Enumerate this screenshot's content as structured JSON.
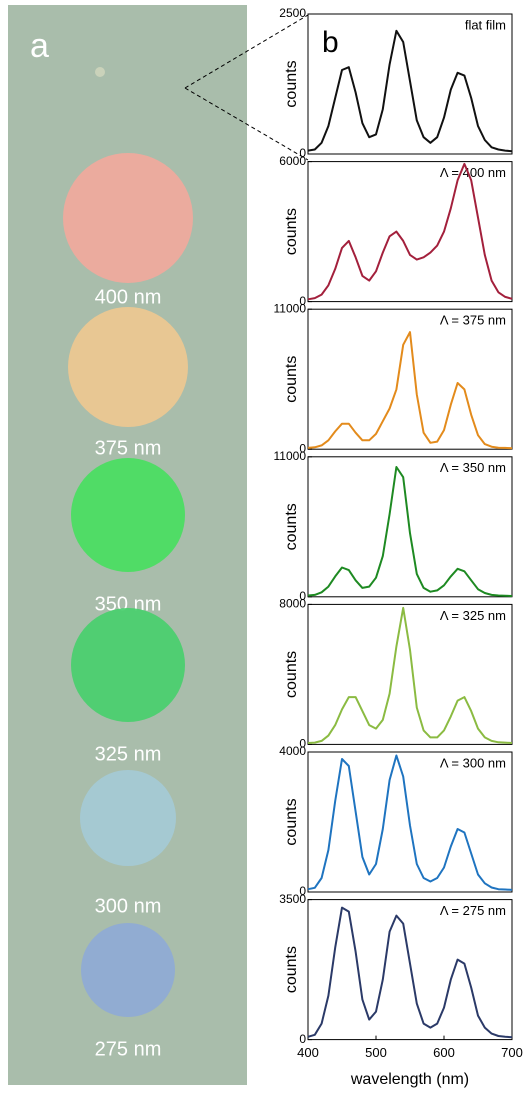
{
  "panel_a": {
    "label": "a",
    "background": "#a9bdab",
    "samples": [
      {
        "label": "400 nm",
        "color": "#f2a89c"
      },
      {
        "label": "375 nm",
        "color": "#eec890"
      },
      {
        "label": "350 nm",
        "color": "#46df5e"
      },
      {
        "label": "325 nm",
        "color": "#46cf6c"
      },
      {
        "label": "300 nm",
        "color": "#a4cad6"
      },
      {
        "label": "275 nm",
        "color": "#8eaad6"
      }
    ]
  },
  "panel_b": {
    "label": "b"
  },
  "chart_data": [
    {
      "type": "line",
      "annotation": "flat film",
      "ylabel": "counts",
      "color": "#111111",
      "xlim": [
        400,
        700
      ],
      "ylim": [
        0,
        2500
      ],
      "yticks": [
        0,
        2500
      ],
      "x": [
        400,
        410,
        420,
        430,
        440,
        450,
        460,
        470,
        480,
        490,
        500,
        510,
        520,
        530,
        540,
        550,
        560,
        570,
        580,
        590,
        600,
        610,
        620,
        630,
        640,
        650,
        660,
        670,
        680,
        690,
        700
      ],
      "values": [
        60,
        80,
        200,
        500,
        1000,
        1500,
        1550,
        1100,
        550,
        300,
        350,
        800,
        1600,
        2200,
        2000,
        1300,
        600,
        300,
        200,
        300,
        650,
        1150,
        1450,
        1400,
        1000,
        500,
        250,
        120,
        80,
        60,
        50
      ]
    },
    {
      "type": "line",
      "annotation": "Λ = 400 nm",
      "ylabel": "counts",
      "color": "#a3203c",
      "xlim": [
        400,
        700
      ],
      "ylim": [
        0,
        6000
      ],
      "yticks": [
        0,
        6000
      ],
      "x": [
        400,
        410,
        420,
        430,
        440,
        450,
        460,
        470,
        480,
        490,
        500,
        510,
        520,
        530,
        540,
        550,
        560,
        570,
        580,
        590,
        600,
        610,
        620,
        630,
        640,
        650,
        660,
        670,
        680,
        690,
        700
      ],
      "values": [
        100,
        150,
        300,
        700,
        1400,
        2300,
        2600,
        1900,
        1100,
        900,
        1300,
        2100,
        2800,
        3000,
        2600,
        2000,
        1800,
        1900,
        2100,
        2400,
        3000,
        4000,
        5200,
        5900,
        5200,
        3600,
        2000,
        900,
        400,
        200,
        120
      ]
    },
    {
      "type": "line",
      "annotation": "Λ = 375 nm",
      "ylabel": "counts",
      "color": "#e38b1c",
      "xlim": [
        400,
        700
      ],
      "ylim": [
        0,
        11000
      ],
      "yticks": [
        0,
        11000
      ],
      "x": [
        400,
        410,
        420,
        430,
        440,
        450,
        460,
        470,
        480,
        490,
        500,
        510,
        520,
        530,
        540,
        550,
        560,
        570,
        580,
        590,
        600,
        610,
        620,
        630,
        640,
        650,
        660,
        670,
        680,
        690,
        700
      ],
      "values": [
        100,
        150,
        300,
        700,
        1400,
        2000,
        2000,
        1300,
        700,
        700,
        1200,
        2200,
        3200,
        4700,
        8200,
        9200,
        4300,
        1300,
        500,
        600,
        1500,
        3500,
        5200,
        4700,
        2700,
        1100,
        400,
        200,
        120,
        100,
        80
      ]
    },
    {
      "type": "line",
      "annotation": "Λ = 350 nm",
      "ylabel": "counts",
      "color": "#1e8a22",
      "xlim": [
        400,
        700
      ],
      "ylim": [
        0,
        11000
      ],
      "yticks": [
        0,
        11000
      ],
      "x": [
        400,
        410,
        420,
        430,
        440,
        450,
        460,
        470,
        480,
        490,
        500,
        510,
        520,
        530,
        540,
        550,
        560,
        570,
        580,
        590,
        600,
        610,
        620,
        630,
        640,
        650,
        660,
        670,
        680,
        690,
        700
      ],
      "values": [
        100,
        150,
        350,
        800,
        1600,
        2300,
        2100,
        1300,
        700,
        800,
        1500,
        3200,
        6500,
        10200,
        9400,
        5000,
        1800,
        700,
        400,
        500,
        900,
        1600,
        2200,
        2000,
        1300,
        600,
        300,
        150,
        100,
        80,
        60
      ]
    },
    {
      "type": "line",
      "annotation": "Λ = 325 nm",
      "ylabel": "counts",
      "color": "#8bbb42",
      "xlim": [
        400,
        700
      ],
      "ylim": [
        0,
        8000
      ],
      "yticks": [
        0,
        8000
      ],
      "x": [
        400,
        410,
        420,
        430,
        440,
        450,
        460,
        470,
        480,
        490,
        500,
        510,
        520,
        530,
        540,
        550,
        560,
        570,
        580,
        590,
        600,
        610,
        620,
        630,
        640,
        650,
        660,
        670,
        680,
        690,
        700
      ],
      "values": [
        80,
        100,
        200,
        500,
        1100,
        2000,
        2700,
        2700,
        1900,
        1100,
        900,
        1400,
        2900,
        5600,
        7800,
        5400,
        2100,
        800,
        400,
        400,
        800,
        1600,
        2500,
        2700,
        1900,
        900,
        400,
        200,
        120,
        100,
        80
      ]
    },
    {
      "type": "line",
      "annotation": "Λ = 300 nm",
      "ylabel": "counts",
      "color": "#1f74c0",
      "xlim": [
        400,
        700
      ],
      "ylim": [
        0,
        4000
      ],
      "yticks": [
        0,
        4000
      ],
      "x": [
        400,
        410,
        420,
        430,
        440,
        450,
        460,
        470,
        480,
        490,
        500,
        510,
        520,
        530,
        540,
        550,
        560,
        570,
        580,
        590,
        600,
        610,
        620,
        630,
        640,
        650,
        660,
        670,
        680,
        690,
        700
      ],
      "values": [
        80,
        120,
        400,
        1200,
        2600,
        3800,
        3600,
        2300,
        1000,
        500,
        800,
        1800,
        3200,
        3900,
        3300,
        1900,
        800,
        400,
        300,
        400,
        700,
        1300,
        1800,
        1700,
        1100,
        500,
        250,
        130,
        80,
        70,
        60
      ]
    },
    {
      "type": "line",
      "annotation": "Λ = 275 nm",
      "ylabel": "counts",
      "color": "#2b3a68",
      "xlim": [
        400,
        700
      ],
      "ylim": [
        0,
        3500
      ],
      "yticks": [
        0,
        3500
      ],
      "xticks": [
        400,
        500,
        600,
        700
      ],
      "xlabel": "wavelength (nm)",
      "x": [
        400,
        410,
        420,
        430,
        440,
        450,
        460,
        470,
        480,
        490,
        500,
        510,
        520,
        530,
        540,
        550,
        560,
        570,
        580,
        590,
        600,
        610,
        620,
        630,
        640,
        650,
        660,
        670,
        680,
        690,
        700
      ],
      "values": [
        70,
        120,
        400,
        1100,
        2300,
        3300,
        3200,
        2200,
        1000,
        500,
        700,
        1500,
        2700,
        3100,
        2900,
        1900,
        900,
        400,
        300,
        400,
        800,
        1500,
        2000,
        1900,
        1300,
        600,
        300,
        150,
        90,
        70,
        60
      ]
    }
  ]
}
